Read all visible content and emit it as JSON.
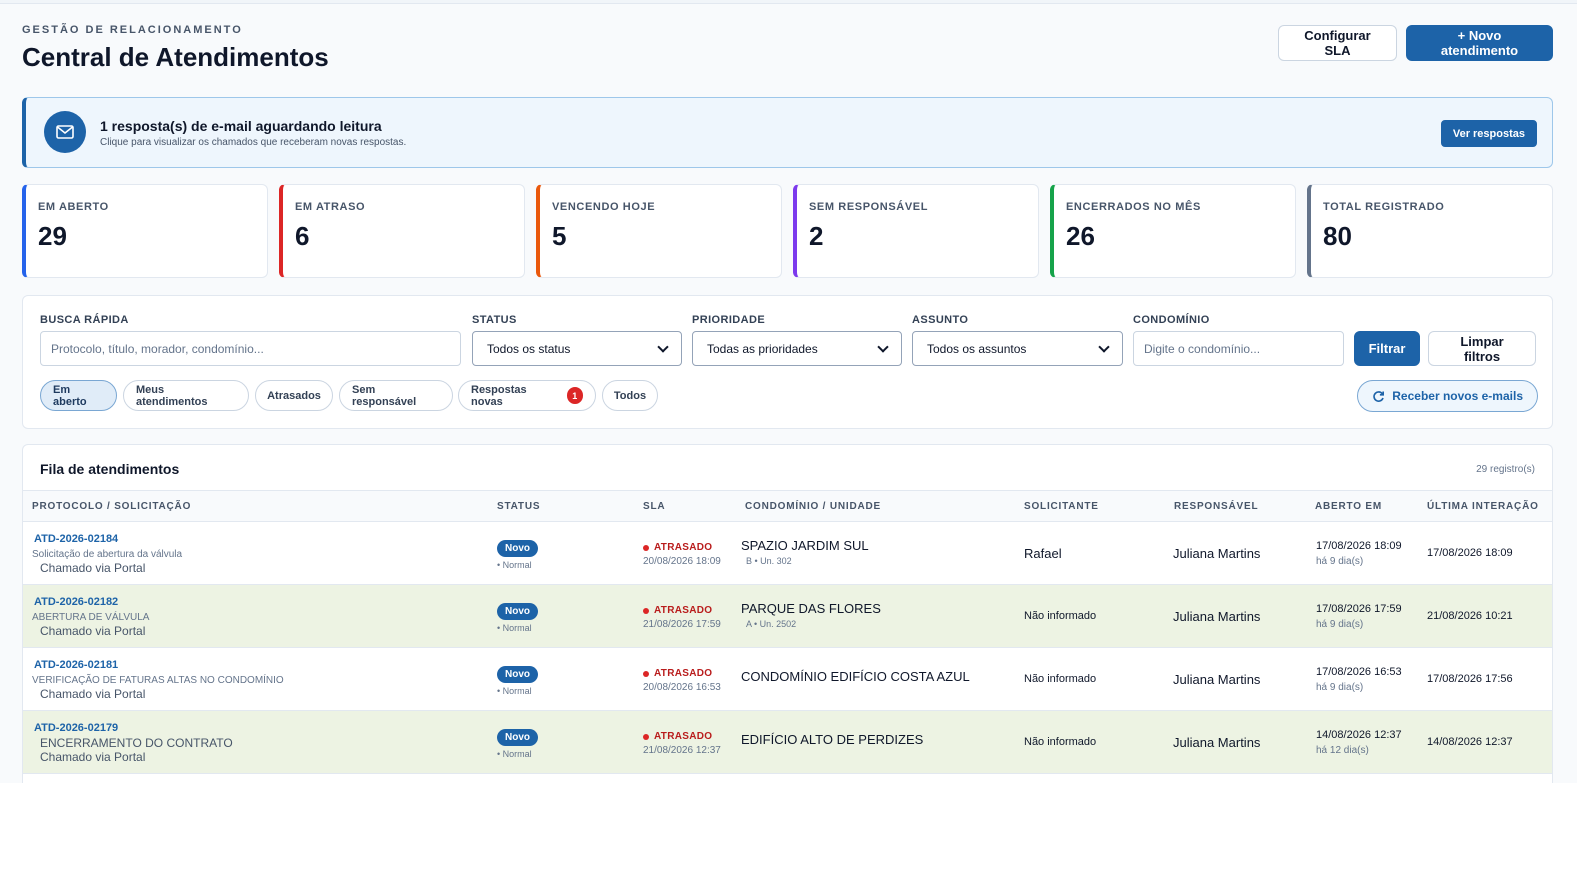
{
  "header": {
    "eyebrow": "GESTÃO DE RELACIONAMENTO",
    "title": "Central de Atendimentos",
    "configure_sla_label": "Configurar SLA",
    "new_ticket_label": "+ Novo atendimento"
  },
  "notice": {
    "icon": "mail-icon",
    "title": "1 resposta(s) de e-mail aguardando leitura",
    "subtitle": "Clique para visualizar os chamados que receberam novas respostas.",
    "button_label": "Ver respostas"
  },
  "kpis": [
    {
      "label": "EM ABERTO",
      "value": "29",
      "color": "#2563eb"
    },
    {
      "label": "EM ATRASO",
      "value": "6",
      "color": "#dc2626"
    },
    {
      "label": "VENCENDO HOJE",
      "value": "5",
      "color": "#ea580c"
    },
    {
      "label": "SEM RESPONSÁVEL",
      "value": "2",
      "color": "#7c3aed"
    },
    {
      "label": "ENCERRADOS NO MÊS",
      "value": "26",
      "color": "#16a34a"
    },
    {
      "label": "TOTAL REGISTRADO",
      "value": "80",
      "color": "#64748b"
    }
  ],
  "filters": {
    "search": {
      "label": "BUSCA RÁPIDA",
      "placeholder": "Protocolo, título, morador, condomínio..."
    },
    "status": {
      "label": "STATUS",
      "value": "Todos os status"
    },
    "priority": {
      "label": "PRIORIDADE",
      "value": "Todas as prioridades"
    },
    "subject": {
      "label": "ASSUNTO",
      "value": "Todos os assuntos"
    },
    "condo": {
      "label": "CONDOMÍNIO",
      "placeholder": "Digite o condomínio..."
    },
    "filter_button": "Filtrar",
    "clear_button": "Limpar filtros",
    "chips": [
      "Em aberto",
      "Meus atendimentos",
      "Atrasados",
      "Sem responsável",
      "Respostas novas",
      "Todos"
    ],
    "new_replies_count": "1",
    "refresh_label": "Receber novos e-mails"
  },
  "queue": {
    "title": "Fila de atendimentos",
    "count": "29 registro(s)",
    "columns": [
      "PROTOCOLO / SOLICITAÇÃO",
      "STATUS",
      "SLA",
      "CONDOMÍNIO / UNIDADE",
      "SOLICITANTE",
      "RESPONSÁVEL",
      "ABERTO EM",
      "ÚLTIMA INTERAÇÃO"
    ],
    "rows": [
      {
        "protocol": "ATD-2026-02184",
        "subject": "Solicitação de abertura da válvula",
        "channel": "Chamado via Portal",
        "status": "Novo",
        "priority": "• Normal",
        "sla": "ATRASADO",
        "sla_date": "20/08/2026 18:09",
        "condo": "SPAZIO JARDIM SUL",
        "unit": "B • Un. 302",
        "requester": "Rafael",
        "owner": "Juliana Martins",
        "opened": "17/08/2026 18:09",
        "age": "há 9 dia(s)",
        "last": "17/08/2026 18:09"
      },
      {
        "protocol": "ATD-2026-02182",
        "subject": "ABERTURA DE VÁLVULA",
        "channel": "Chamado via Portal",
        "status": "Novo",
        "priority": "• Normal",
        "sla": "ATRASADO",
        "sla_date": "21/08/2026 17:59",
        "condo": "PARQUE DAS FLORES",
        "unit": "A • Un. 2502",
        "requester": "Não informado",
        "owner": "Juliana Martins",
        "opened": "17/08/2026 17:59",
        "age": "há 9 dia(s)",
        "last": "21/08/2026 10:21"
      },
      {
        "protocol": "ATD-2026-02181",
        "subject": "VERIFICAÇÃO DE FATURAS ALTAS NO CONDOMÍNIO",
        "channel": "Chamado via Portal",
        "status": "Novo",
        "priority": "• Normal",
        "sla": "ATRASADO",
        "sla_date": "20/08/2026 16:53",
        "condo": "CONDOMÍNIO EDIFÍCIO COSTA AZUL",
        "unit": "",
        "requester": "Não informado",
        "owner": "Juliana Martins",
        "opened": "17/08/2026 16:53",
        "age": "há 9 dia(s)",
        "last": "17/08/2026 17:56"
      },
      {
        "protocol": "ATD-2026-02179",
        "subject": "ENCERRAMENTO DO CONTRATO",
        "channel": "Chamado via Portal",
        "status": "Novo",
        "priority": "• Normal",
        "sla": "ATRASADO",
        "sla_date": "21/08/2026 12:37",
        "condo": "EDIFÍCIO ALTO DE PERDIZES",
        "unit": "",
        "requester": "Não informado",
        "owner": "Juliana Martins",
        "opened": "14/08/2026 12:37",
        "age": "há 12 dia(s)",
        "last": "14/08/2026 12:37"
      }
    ]
  }
}
